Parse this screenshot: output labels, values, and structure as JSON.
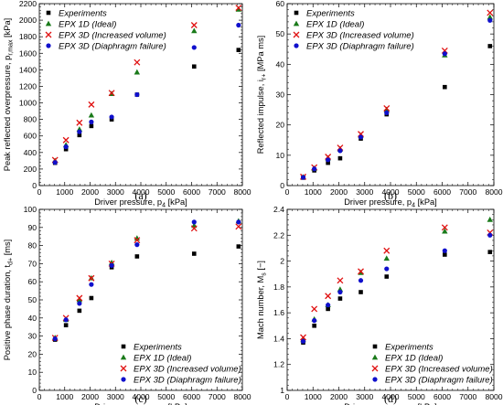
{
  "chart_data": [
    {
      "panel": "(a)",
      "type": "scatter",
      "xlabel": "Driver pressure, p",
      "xlabel_sub": "4",
      "xlabel_unit": " [kPa]",
      "ylabel": "Peak reflected overpressure, p",
      "ylabel_sub": "r,max",
      "ylabel_unit": " [kPa]",
      "xlim": [
        0,
        8000
      ],
      "ylim": [
        0,
        2200
      ],
      "xticks": [
        "0",
        "1000",
        "2000",
        "3000",
        "4000",
        "5000",
        "6000",
        "7000",
        "8000"
      ],
      "yticks": [
        "0",
        "200",
        "400",
        "600",
        "800",
        "1000",
        "1200",
        "1400",
        "1600",
        "1800",
        "2000",
        "2200"
      ],
      "legend_position": "top-left",
      "series": [
        {
          "name": "Experiments",
          "marker": "square",
          "color": "#000000",
          "x": [
            620,
            1050,
            1580,
            2050,
            2850,
            3850,
            6100,
            7850
          ],
          "y": [
            275,
            440,
            610,
            720,
            800,
            1100,
            1440,
            1640
          ]
        },
        {
          "name": "EPX 1D (Ideal)",
          "marker": "triangle",
          "color": "#1a7a1a",
          "x": [
            620,
            1050,
            1580,
            2050,
            2850,
            3850,
            6100,
            7850
          ],
          "y": [
            300,
            490,
            680,
            850,
            1110,
            1370,
            1870,
            2130
          ]
        },
        {
          "name": "EPX 3D (Increased volume)",
          "marker": "cross",
          "color": "#e01010",
          "x": [
            620,
            1050,
            1580,
            2050,
            2850,
            3850,
            6100,
            7850
          ],
          "y": [
            310,
            550,
            760,
            980,
            1120,
            1490,
            1940,
            2150
          ]
        },
        {
          "name": "EPX 3D (Diaphragm failure)",
          "marker": "circle",
          "color": "#1010cc",
          "x": [
            620,
            1050,
            1580,
            2050,
            2850,
            3850,
            6100,
            7850
          ],
          "y": [
            280,
            470,
            650,
            770,
            830,
            1100,
            1670,
            1940
          ]
        }
      ]
    },
    {
      "panel": "(b)",
      "type": "scatter",
      "xlabel": "Driver pressure, p",
      "xlabel_sub": "4",
      "xlabel_unit": " [kPa]",
      "ylabel": "Reflected impulse, i",
      "ylabel_sub": "r+",
      "ylabel_unit": " [MPa ms]",
      "xlim": [
        0,
        8000
      ],
      "ylim": [
        0,
        60
      ],
      "xticks": [
        "0",
        "1000",
        "2000",
        "3000",
        "4000",
        "5000",
        "6000",
        "7000",
        "8000"
      ],
      "yticks": [
        "0",
        "10",
        "20",
        "30",
        "40",
        "50",
        "60"
      ],
      "legend_position": "top-left",
      "series": [
        {
          "name": "Experiments",
          "marker": "square",
          "color": "#000000",
          "x": [
            620,
            1050,
            1580,
            2050,
            2850,
            3850,
            6100,
            7850
          ],
          "y": [
            2.6,
            5.0,
            7.5,
            9.0,
            15.5,
            23.5,
            32.5,
            46.0
          ]
        },
        {
          "name": "EPX 1D (Ideal)",
          "marker": "triangle",
          "color": "#1a7a1a",
          "x": [
            620,
            1050,
            1580,
            2050,
            2850,
            3850,
            6100,
            7850
          ],
          "y": [
            2.8,
            5.6,
            9.0,
            12.0,
            16.5,
            25.0,
            43.0,
            55.5
          ]
        },
        {
          "name": "EPX 3D (Increased volume)",
          "marker": "cross",
          "color": "#e01010",
          "x": [
            620,
            1050,
            1580,
            2050,
            2850,
            3850,
            6100,
            7850
          ],
          "y": [
            2.9,
            6.0,
            9.5,
            12.5,
            17.0,
            25.5,
            44.5,
            57.0
          ]
        },
        {
          "name": "EPX 3D (Diaphragm failure)",
          "marker": "circle",
          "color": "#1010cc",
          "x": [
            620,
            1050,
            1580,
            2050,
            2850,
            3850,
            6100,
            7850
          ],
          "y": [
            2.7,
            5.5,
            8.5,
            11.5,
            16.0,
            24.0,
            43.5,
            54.5
          ]
        }
      ]
    },
    {
      "panel": "(c)",
      "type": "scatter",
      "xlabel": "Driver pressure, p",
      "xlabel_sub": "4",
      "xlabel_unit": " [kPa]",
      "ylabel": "Positive phase duration, t",
      "ylabel_sub": "d+",
      "ylabel_unit": " [ms]",
      "xlim": [
        0,
        8000
      ],
      "ylim": [
        0,
        100
      ],
      "xticks": [
        "0",
        "1000",
        "2000",
        "3000",
        "4000",
        "5000",
        "6000",
        "7000",
        "8000"
      ],
      "yticks": [
        "0",
        "10",
        "20",
        "30",
        "40",
        "50",
        "60",
        "70",
        "80",
        "90",
        "100"
      ],
      "legend_position": "bottom-right",
      "series": [
        {
          "name": "Experiments",
          "marker": "square",
          "color": "#000000",
          "x": [
            620,
            1050,
            1580,
            2050,
            2850,
            3850,
            6100,
            7850
          ],
          "y": [
            28,
            36,
            44,
            51,
            68,
            74,
            75.5,
            79.5
          ]
        },
        {
          "name": "EPX 1D (Ideal)",
          "marker": "triangle",
          "color": "#1a7a1a",
          "x": [
            620,
            1050,
            1580,
            2050,
            2850,
            3850,
            6100,
            7850
          ],
          "y": [
            29,
            39,
            50,
            62,
            70.5,
            84,
            91,
            93.5
          ]
        },
        {
          "name": "EPX 3D (Increased volume)",
          "marker": "cross",
          "color": "#e01010",
          "x": [
            620,
            1050,
            1580,
            2050,
            2850,
            3850,
            6100,
            7850
          ],
          "y": [
            29,
            40,
            51,
            62,
            70,
            83,
            89.5,
            90.5
          ]
        },
        {
          "name": "EPX 3D (Diaphragm failure)",
          "marker": "circle",
          "color": "#1010cc",
          "x": [
            620,
            1050,
            1580,
            2050,
            2850,
            3850,
            6100,
            7850
          ],
          "y": [
            28.5,
            39,
            48,
            58.5,
            69,
            80.5,
            93,
            93
          ]
        }
      ]
    },
    {
      "panel": "(d)",
      "type": "scatter",
      "xlabel": "Driver pressure, p",
      "xlabel_sub": "4",
      "xlabel_unit": " [kPa]",
      "ylabel": "Mach number, M",
      "ylabel_sub": "s",
      "ylabel_unit": " [−]",
      "xlim": [
        0,
        8000
      ],
      "ylim": [
        1.0,
        2.4
      ],
      "xticks": [
        "0",
        "1000",
        "2000",
        "3000",
        "4000",
        "5000",
        "6000",
        "7000",
        "8000"
      ],
      "yticks": [
        "1",
        "1.2",
        "1.4",
        "1.6",
        "1.8",
        "2",
        "2.2",
        "2.4"
      ],
      "legend_position": "bottom-right",
      "series": [
        {
          "name": "Experiments",
          "marker": "square",
          "color": "#000000",
          "x": [
            620,
            1050,
            1580,
            2050,
            2850,
            3850,
            6100,
            7850
          ],
          "y": [
            1.37,
            1.5,
            1.63,
            1.71,
            1.76,
            1.88,
            2.05,
            2.07
          ]
        },
        {
          "name": "EPX 1D (Ideal)",
          "marker": "triangle",
          "color": "#1a7a1a",
          "x": [
            620,
            1050,
            1580,
            2050,
            2850,
            3850,
            6100,
            7850
          ],
          "y": [
            1.39,
            1.55,
            1.66,
            1.78,
            1.91,
            2.02,
            2.23,
            2.32
          ]
        },
        {
          "name": "EPX 3D (Increased volume)",
          "marker": "cross",
          "color": "#e01010",
          "x": [
            620,
            1050,
            1580,
            2050,
            2850,
            3850,
            6100,
            7850
          ],
          "y": [
            1.41,
            1.63,
            1.73,
            1.85,
            1.92,
            2.08,
            2.26,
            2.22
          ]
        },
        {
          "name": "EPX 3D (Diaphragm failure)",
          "marker": "circle",
          "color": "#1010cc",
          "x": [
            620,
            1050,
            1580,
            2050,
            2850,
            3850,
            6100,
            7850
          ],
          "y": [
            1.38,
            1.54,
            1.66,
            1.76,
            1.85,
            1.94,
            2.08,
            2.2
          ]
        }
      ]
    }
  ]
}
